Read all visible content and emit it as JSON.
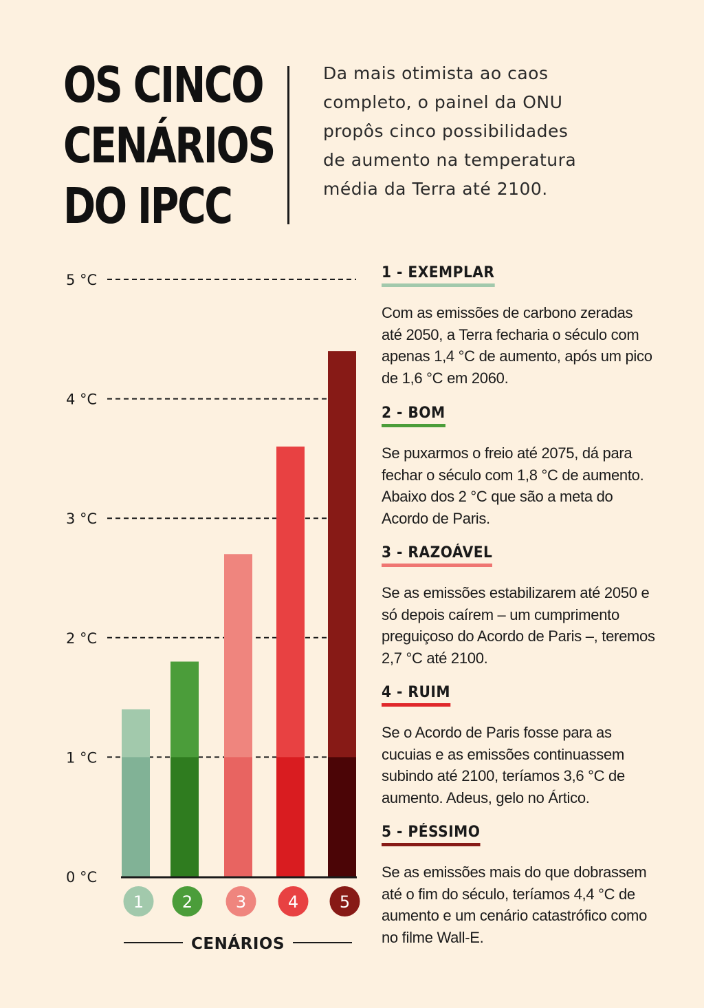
{
  "header": {
    "title_lines": [
      "OS CINCO",
      "CENÁRIOS",
      "DO IPCC"
    ],
    "intro": "Da mais otimista ao caos completo, o painel da ONU propôs cinco possibilidades de aumento na temperatura média da Terra até 2100."
  },
  "chart_data": {
    "type": "bar",
    "categories": [
      "1",
      "2",
      "3",
      "4",
      "5"
    ],
    "values": [
      1.4,
      1.8,
      2.7,
      3.6,
      4.4
    ],
    "colors": [
      "#a2c9ac",
      "#4b9d3a",
      "#ef857e",
      "#e84142",
      "#871a16"
    ],
    "base_colors": [
      "#81b296",
      "#2f7c1f",
      "#e86461",
      "#d91c20",
      "#4b0506"
    ],
    "base_level": 1.0,
    "yticks": [
      "0 °C",
      "1 °C",
      "2 °C",
      "3 °C",
      "4 °C",
      "5 °C"
    ],
    "ylim": [
      0,
      5
    ],
    "xlabel": "CENÁRIOS",
    "grid": "dashed"
  },
  "scenarios": [
    {
      "title": "1 - EXEMPLAR",
      "color": "#a2c9ac",
      "text": "Com as emissões de carbono zeradas até 2050, a Terra fecharia o século com apenas 1,4 °C de aumento, após um pico de 1,6 °C em 2060."
    },
    {
      "title": "2 - BOM",
      "color": "#4b9d3a",
      "text": "Se puxarmos o freio até 2075, dá para fechar o século com 1,8 °C de aumento. Abaixo dos 2 °C que são a meta do Acordo de Paris."
    },
    {
      "title": "3 - RAZOÁVEL",
      "color": "#ef7672",
      "text": "Se as emissões estabilizarem até 2050 e só depois caírem – um cumprimento preguiçoso do Acordo de Paris –, teremos 2,7 °C até 2100."
    },
    {
      "title": "4 - RUIM",
      "color": "#e0282b",
      "text": "Se o Acordo de Paris fosse para as cucuias e as emissões continuassem subindo até 2100, teríamos 3,6 °C de aumento. Adeus, gelo no Ártico."
    },
    {
      "title": "5 - PÉSSIMO",
      "color": "#871a16",
      "text": "Se as emissões mais do que dobrassem até o fim do século, teríamos 4,4 °C de aumento e um cenário catastrófico como no filme Wall-E."
    }
  ]
}
